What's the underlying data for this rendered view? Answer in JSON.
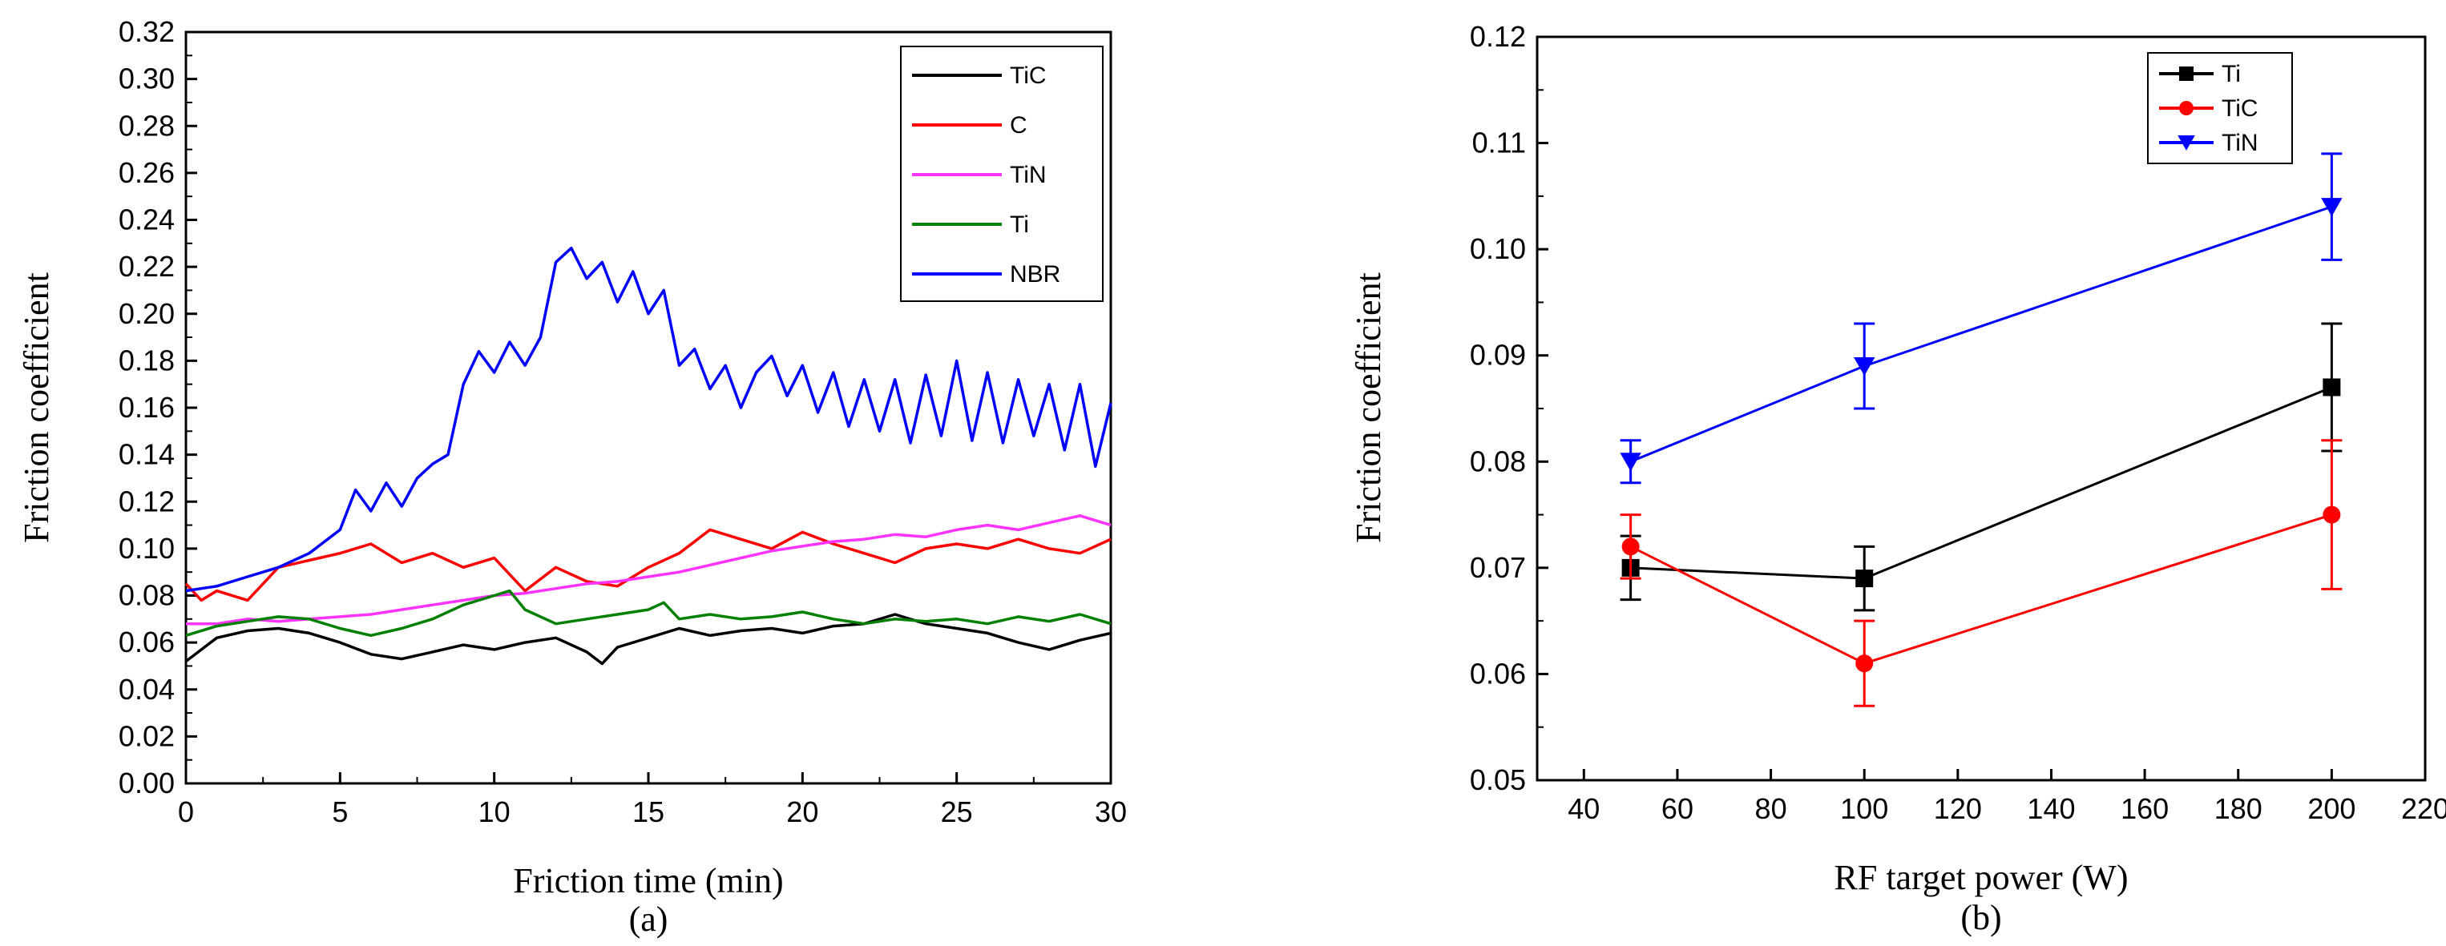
{
  "chart_data": [
    {
      "type": "line",
      "panel_label": "(a)",
      "xlabel": "Friction time (min)",
      "ylabel": "Friction coefficient",
      "xlim": [
        0,
        30
      ],
      "ylim": [
        0,
        0.32
      ],
      "xticks": [
        "0",
        "5",
        "10",
        "15",
        "20",
        "25",
        "30"
      ],
      "yticks": [
        "0.00",
        "0.02",
        "0.04",
        "0.06",
        "0.08",
        "0.10",
        "0.12",
        "0.14",
        "0.16",
        "0.18",
        "0.20",
        "0.22",
        "0.24",
        "0.26",
        "0.28",
        "0.30",
        "0.32"
      ],
      "legend_position": "top-right",
      "series": [
        {
          "name": "TiC",
          "color": "#000000",
          "x": [
            0,
            1,
            2,
            3,
            4,
            5,
            6,
            7,
            8,
            9,
            10,
            11,
            12,
            13,
            13.5,
            14,
            15,
            16,
            17,
            18,
            19,
            20,
            21,
            22,
            23,
            24,
            25,
            26,
            27,
            28,
            29,
            30
          ],
          "y": [
            0.052,
            0.062,
            0.065,
            0.066,
            0.064,
            0.06,
            0.055,
            0.053,
            0.056,
            0.059,
            0.057,
            0.06,
            0.062,
            0.056,
            0.051,
            0.058,
            0.062,
            0.066,
            0.063,
            0.065,
            0.066,
            0.064,
            0.067,
            0.068,
            0.072,
            0.068,
            0.066,
            0.064,
            0.06,
            0.057,
            0.061,
            0.064
          ]
        },
        {
          "name": "C",
          "color": "#ff0000",
          "x": [
            0,
            0.5,
            1,
            2,
            3,
            4,
            5,
            6,
            7,
            8,
            9,
            10,
            11,
            12,
            13,
            14,
            15,
            16,
            17,
            18,
            19,
            20,
            21,
            22,
            23,
            24,
            25,
            26,
            27,
            28,
            29,
            30
          ],
          "y": [
            0.085,
            0.078,
            0.082,
            0.078,
            0.092,
            0.095,
            0.098,
            0.102,
            0.094,
            0.098,
            0.092,
            0.096,
            0.082,
            0.092,
            0.086,
            0.084,
            0.092,
            0.098,
            0.108,
            0.104,
            0.1,
            0.107,
            0.102,
            0.098,
            0.094,
            0.1,
            0.102,
            0.1,
            0.104,
            0.1,
            0.098,
            0.104
          ]
        },
        {
          "name": "TiN",
          "color": "#ff33ff",
          "x": [
            0,
            1,
            2,
            3,
            4,
            5,
            6,
            7,
            8,
            9,
            10,
            11,
            12,
            13,
            14,
            15,
            16,
            17,
            18,
            19,
            20,
            21,
            22,
            23,
            24,
            25,
            26,
            27,
            28,
            29,
            30
          ],
          "y": [
            0.068,
            0.068,
            0.07,
            0.069,
            0.07,
            0.071,
            0.072,
            0.074,
            0.076,
            0.078,
            0.08,
            0.081,
            0.083,
            0.085,
            0.086,
            0.088,
            0.09,
            0.093,
            0.096,
            0.099,
            0.101,
            0.103,
            0.104,
            0.106,
            0.105,
            0.108,
            0.11,
            0.108,
            0.111,
            0.114,
            0.11
          ]
        },
        {
          "name": "Ti",
          "color": "#008000",
          "x": [
            0,
            1,
            2,
            3,
            4,
            5,
            6,
            7,
            8,
            9,
            10,
            10.5,
            11,
            12,
            13,
            14,
            15,
            15.5,
            16,
            17,
            18,
            19,
            20,
            21,
            22,
            23,
            24,
            25,
            26,
            27,
            28,
            29,
            30
          ],
          "y": [
            0.063,
            0.067,
            0.069,
            0.071,
            0.07,
            0.066,
            0.063,
            0.066,
            0.07,
            0.076,
            0.08,
            0.082,
            0.074,
            0.068,
            0.07,
            0.072,
            0.074,
            0.077,
            0.07,
            0.072,
            0.07,
            0.071,
            0.073,
            0.07,
            0.068,
            0.07,
            0.069,
            0.07,
            0.068,
            0.071,
            0.069,
            0.072,
            0.068
          ]
        },
        {
          "name": "NBR",
          "color": "#0000ff",
          "x": [
            0,
            1,
            2,
            3,
            4,
            5,
            5.5,
            6,
            6.5,
            7,
            7.5,
            8,
            8.5,
            9,
            9.5,
            10,
            10.5,
            11,
            11.5,
            12,
            12.5,
            13,
            13.5,
            14,
            14.5,
            15,
            15.5,
            16,
            16.5,
            17,
            17.5,
            18,
            18.5,
            19,
            19.5,
            20,
            20.5,
            21,
            21.5,
            22,
            22.5,
            23,
            23.5,
            24,
            24.5,
            25,
            25.5,
            26,
            26.5,
            27,
            27.5,
            28,
            28.5,
            29,
            29.5,
            30
          ],
          "y": [
            0.082,
            0.084,
            0.088,
            0.092,
            0.098,
            0.108,
            0.125,
            0.116,
            0.128,
            0.118,
            0.13,
            0.136,
            0.14,
            0.17,
            0.184,
            0.175,
            0.188,
            0.178,
            0.19,
            0.222,
            0.228,
            0.215,
            0.222,
            0.205,
            0.218,
            0.2,
            0.21,
            0.178,
            0.185,
            0.168,
            0.178,
            0.16,
            0.175,
            0.182,
            0.165,
            0.178,
            0.158,
            0.175,
            0.152,
            0.172,
            0.15,
            0.172,
            0.145,
            0.174,
            0.148,
            0.18,
            0.146,
            0.175,
            0.145,
            0.172,
            0.148,
            0.17,
            0.142,
            0.17,
            0.135,
            0.162
          ]
        }
      ]
    },
    {
      "type": "line",
      "panel_label": "(b)",
      "xlabel": "RF target power (W)",
      "ylabel": "Friction coefficient",
      "xlim": [
        30,
        220
      ],
      "ylim": [
        0.05,
        0.12
      ],
      "xticks": [
        "40",
        "60",
        "80",
        "100",
        "120",
        "140",
        "160",
        "180",
        "200",
        "220"
      ],
      "yticks": [
        "0.05",
        "0.06",
        "0.07",
        "0.08",
        "0.09",
        "0.10",
        "0.11",
        "0.12"
      ],
      "legend_position": "top-right",
      "series": [
        {
          "name": "Ti",
          "color": "#000000",
          "marker": "square",
          "x": [
            50,
            100,
            200
          ],
          "y": [
            0.07,
            0.069,
            0.087
          ],
          "err": [
            0.003,
            0.003,
            0.006
          ]
        },
        {
          "name": "TiC",
          "color": "#ff0000",
          "marker": "circle",
          "x": [
            50,
            100,
            200
          ],
          "y": [
            0.072,
            0.061,
            0.075
          ],
          "err": [
            0.003,
            0.004,
            0.007
          ]
        },
        {
          "name": "TiN",
          "color": "#0000ff",
          "marker": "triangle-down",
          "x": [
            50,
            100,
            200
          ],
          "y": [
            0.08,
            0.089,
            0.104
          ],
          "err": [
            0.002,
            0.004,
            0.005
          ]
        }
      ]
    }
  ]
}
